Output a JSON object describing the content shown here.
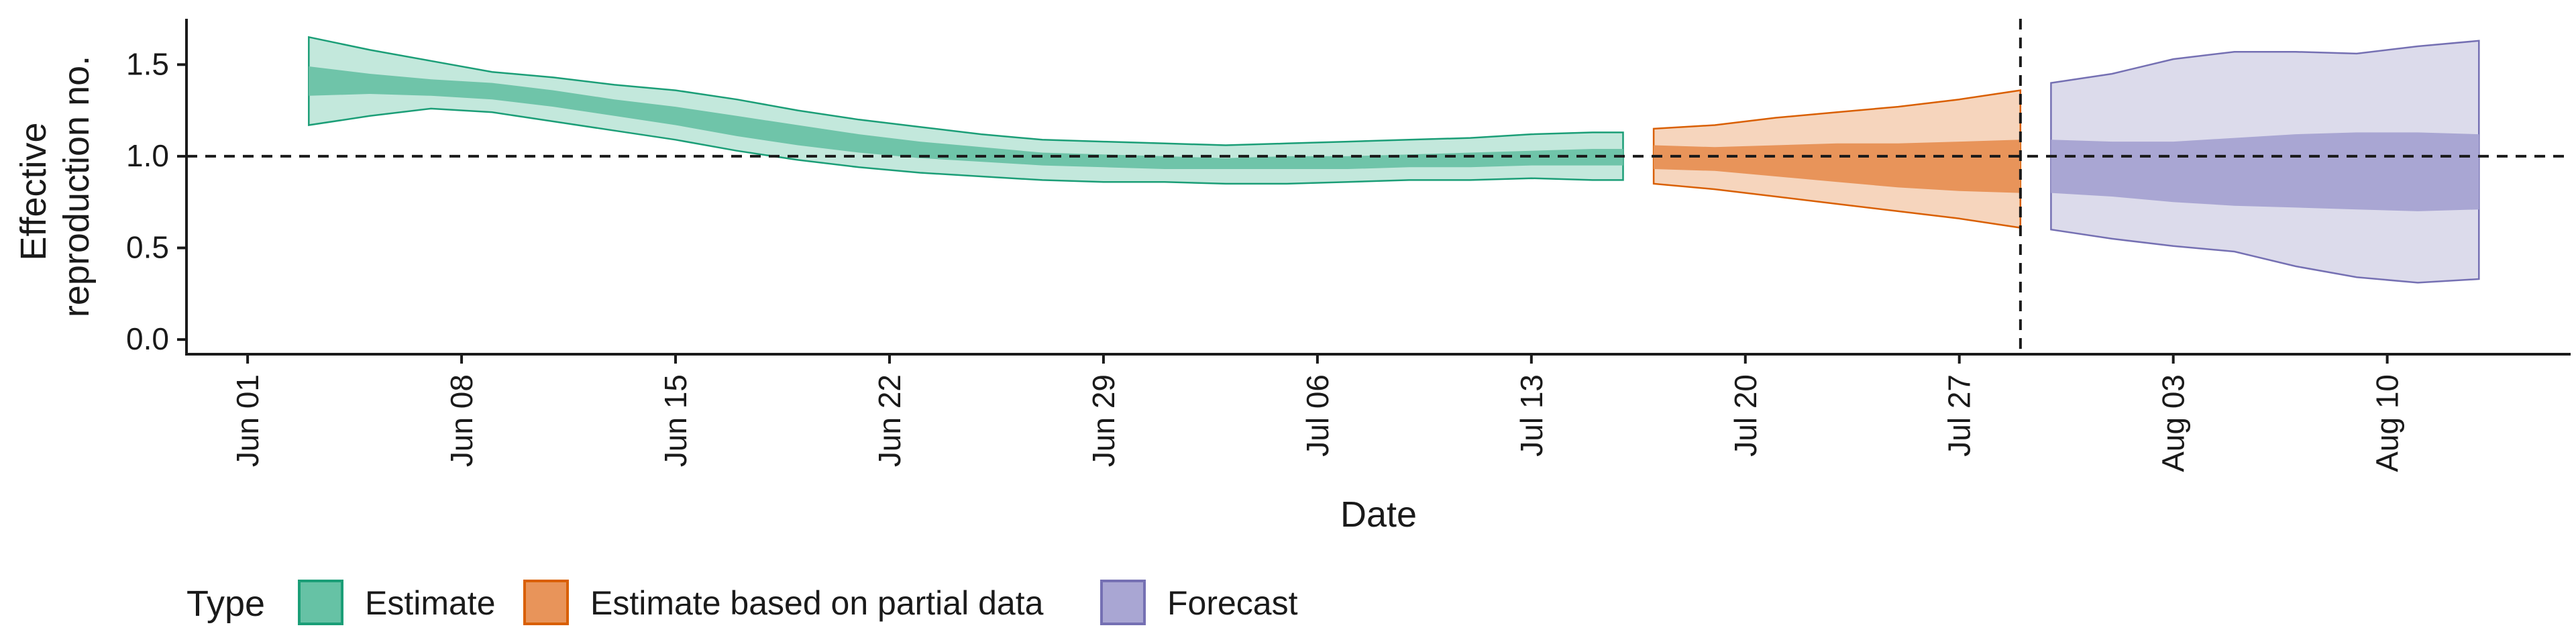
{
  "chart_data": {
    "type": "area",
    "xlabel": "Date",
    "ylabel_lines": [
      "Effective",
      "reproduction no."
    ],
    "ylim": [
      -0.08,
      1.75
    ],
    "xlim": [
      "2021-05-30",
      "2021-08-16"
    ],
    "y_ticks": [
      0.0,
      0.5,
      1.0,
      1.5
    ],
    "y_tick_labels": [
      "0.0",
      "0.5",
      "1.0",
      "1.5"
    ],
    "x_ticks": [
      "2021-06-01",
      "2021-06-08",
      "2021-06-15",
      "2021-06-22",
      "2021-06-29",
      "2021-07-06",
      "2021-07-13",
      "2021-07-20",
      "2021-07-27",
      "2021-08-03",
      "2021-08-10"
    ],
    "x_tick_labels": [
      "Jun 01",
      "Jun 08",
      "Jun 15",
      "Jun 22",
      "Jun 29",
      "Jul 06",
      "Jul 13",
      "Jul 20",
      "Jul 27",
      "Aug 03",
      "Aug 10"
    ],
    "reference_line_y": 1.0,
    "forecast_start_date": "2021-07-29",
    "legend": {
      "title": "Type",
      "position": "bottom",
      "items": [
        {
          "label": "Estimate",
          "fill": "#66c2a5",
          "stroke": "#1b9e77"
        },
        {
          "label": "Estimate based on partial data",
          "fill": "#e8945a",
          "stroke": "#d95f02"
        },
        {
          "label": "Forecast",
          "fill": "#a9a6d3",
          "stroke": "#7570b3"
        }
      ]
    },
    "series": [
      {
        "name": "Estimate",
        "color": "#1b9e77",
        "light_fill": "#c3e8dc",
        "dark_fill": "#6fc4a9",
        "x": [
          "2021-06-03",
          "2021-06-05",
          "2021-06-07",
          "2021-06-09",
          "2021-06-11",
          "2021-06-13",
          "2021-06-15",
          "2021-06-17",
          "2021-06-19",
          "2021-06-21",
          "2021-06-23",
          "2021-06-25",
          "2021-06-27",
          "2021-06-29",
          "2021-07-01",
          "2021-07-03",
          "2021-07-05",
          "2021-07-07",
          "2021-07-09",
          "2021-07-11",
          "2021-07-13",
          "2021-07-15",
          "2021-07-16"
        ],
        "lower90": [
          1.17,
          1.22,
          1.26,
          1.24,
          1.19,
          1.14,
          1.09,
          1.03,
          0.98,
          0.94,
          0.91,
          0.89,
          0.87,
          0.86,
          0.86,
          0.85,
          0.85,
          0.86,
          0.87,
          0.87,
          0.88,
          0.87,
          0.87
        ],
        "upper90": [
          1.65,
          1.58,
          1.52,
          1.46,
          1.43,
          1.39,
          1.36,
          1.31,
          1.25,
          1.2,
          1.16,
          1.12,
          1.09,
          1.08,
          1.07,
          1.06,
          1.07,
          1.08,
          1.09,
          1.1,
          1.12,
          1.13,
          1.13
        ],
        "lower50": [
          1.33,
          1.34,
          1.33,
          1.31,
          1.27,
          1.22,
          1.17,
          1.11,
          1.06,
          1.02,
          0.99,
          0.97,
          0.95,
          0.94,
          0.93,
          0.93,
          0.93,
          0.93,
          0.94,
          0.94,
          0.95,
          0.95,
          0.95
        ],
        "upper50": [
          1.49,
          1.45,
          1.42,
          1.4,
          1.36,
          1.31,
          1.27,
          1.22,
          1.17,
          1.12,
          1.08,
          1.05,
          1.02,
          1.01,
          1.0,
          0.99,
          1.0,
          1.0,
          1.01,
          1.02,
          1.03,
          1.04,
          1.04
        ]
      },
      {
        "name": "Estimate based on partial data",
        "color": "#d95f02",
        "light_fill": "#f6d5bd",
        "dark_fill": "#e8945a",
        "x": [
          "2021-07-17",
          "2021-07-19",
          "2021-07-21",
          "2021-07-23",
          "2021-07-25",
          "2021-07-27",
          "2021-07-29"
        ],
        "lower90": [
          0.85,
          0.82,
          0.78,
          0.74,
          0.7,
          0.66,
          0.61
        ],
        "upper90": [
          1.15,
          1.17,
          1.21,
          1.24,
          1.27,
          1.31,
          1.36
        ],
        "lower50": [
          0.93,
          0.92,
          0.89,
          0.86,
          0.83,
          0.81,
          0.8
        ],
        "upper50": [
          1.06,
          1.05,
          1.06,
          1.07,
          1.07,
          1.08,
          1.09
        ]
      },
      {
        "name": "Forecast",
        "color": "#7570b3",
        "light_fill": "#dcdbeb",
        "dark_fill": "#a9a6d3",
        "x": [
          "2021-07-30",
          "2021-08-01",
          "2021-08-03",
          "2021-08-05",
          "2021-08-07",
          "2021-08-09",
          "2021-08-11",
          "2021-08-13"
        ],
        "lower90": [
          0.6,
          0.55,
          0.51,
          0.48,
          0.4,
          0.34,
          0.31,
          0.33
        ],
        "upper90": [
          1.4,
          1.45,
          1.53,
          1.57,
          1.57,
          1.56,
          1.6,
          1.63
        ],
        "lower50": [
          0.8,
          0.78,
          0.75,
          0.73,
          0.72,
          0.71,
          0.7,
          0.71
        ],
        "upper50": [
          1.09,
          1.08,
          1.08,
          1.1,
          1.12,
          1.13,
          1.13,
          1.12
        ]
      }
    ]
  }
}
